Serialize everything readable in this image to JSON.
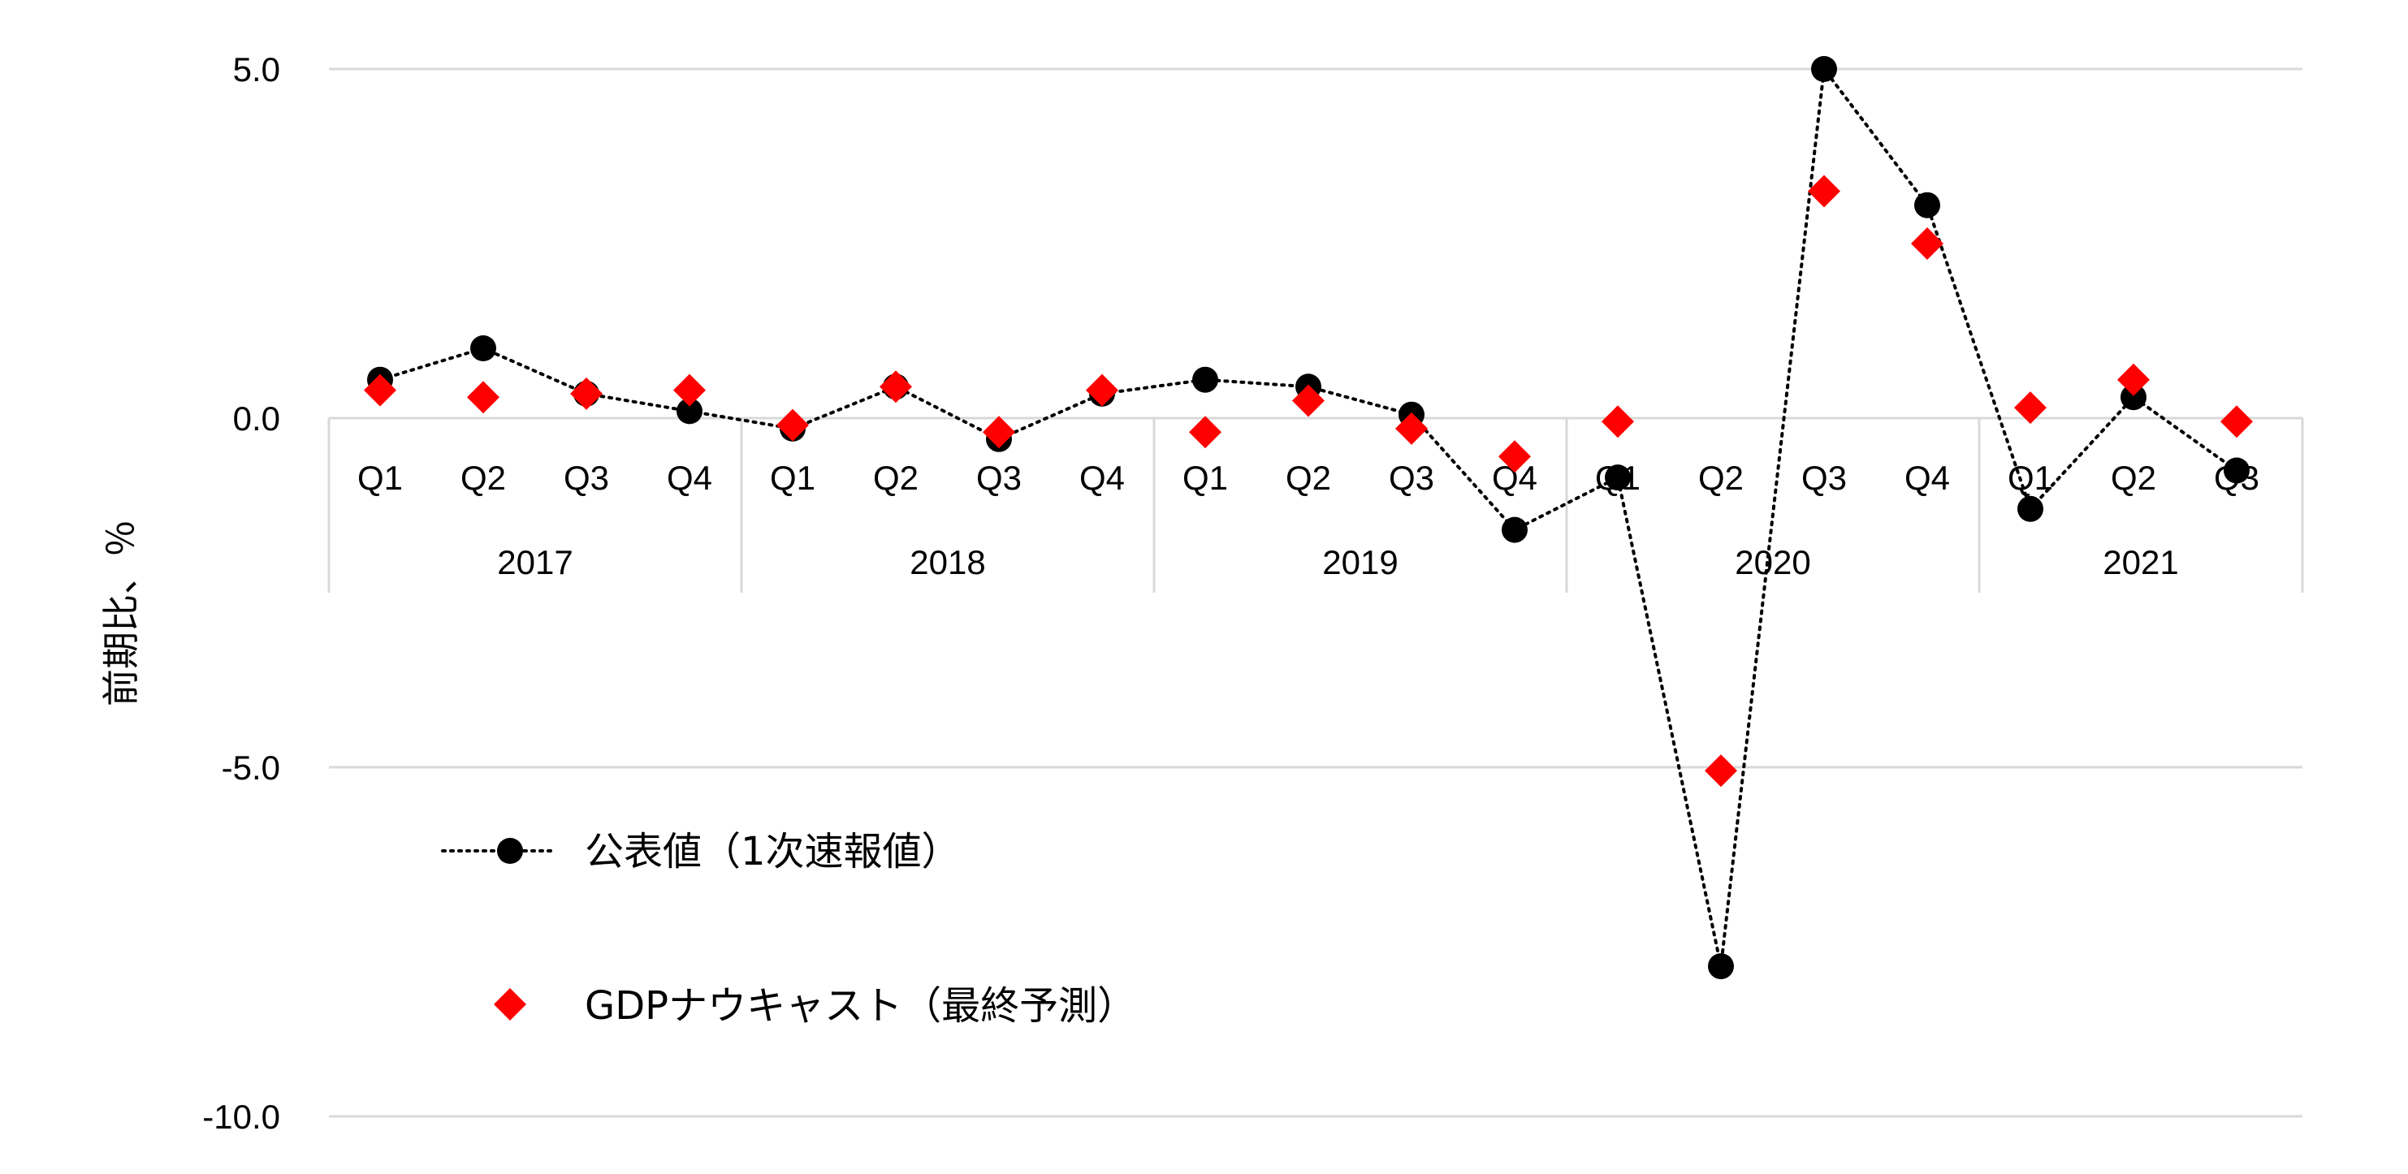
{
  "chart_data": {
    "type": "line",
    "ylabel": "前期比、％",
    "ylim": [
      -10.0,
      5.0
    ],
    "yticks": [
      5.0,
      0.0,
      -5.0,
      -10.0
    ],
    "ytick_labels": [
      "5.0",
      "0.0",
      "-5.0",
      "-10.0"
    ],
    "grid": true,
    "categories": [
      "Q1",
      "Q2",
      "Q3",
      "Q4",
      "Q1",
      "Q2",
      "Q3",
      "Q4",
      "Q1",
      "Q2",
      "Q3",
      "Q4",
      "Q1",
      "Q2",
      "Q3",
      "Q4",
      "Q1",
      "Q2",
      "Q3"
    ],
    "years": [
      {
        "label": "2017",
        "start": 0,
        "count": 4
      },
      {
        "label": "2018",
        "start": 4,
        "count": 4
      },
      {
        "label": "2019",
        "start": 8,
        "count": 4
      },
      {
        "label": "2020",
        "start": 12,
        "count": 4
      },
      {
        "label": "2021",
        "start": 16,
        "count": 3
      }
    ],
    "series": [
      {
        "name": "公表値（1次速報値）",
        "marker": "circle",
        "line": "dotted",
        "color": "#000000",
        "values": [
          0.55,
          1.0,
          0.35,
          0.1,
          -0.15,
          0.45,
          -0.3,
          0.35,
          0.55,
          0.45,
          0.05,
          -1.6,
          -0.85,
          -7.85,
          5.0,
          3.05,
          -1.3,
          0.3,
          -0.75
        ]
      },
      {
        "name": "GDPナウキャスト（最終予測）",
        "marker": "diamond",
        "line": "none",
        "color": "#ff0000",
        "values": [
          0.4,
          0.3,
          0.35,
          0.4,
          -0.1,
          0.45,
          -0.2,
          0.4,
          -0.2,
          0.25,
          -0.15,
          -0.55,
          -0.05,
          -5.05,
          3.25,
          2.5,
          0.15,
          0.55,
          -0.05
        ]
      }
    ],
    "legend": "bottom-left-inside"
  }
}
